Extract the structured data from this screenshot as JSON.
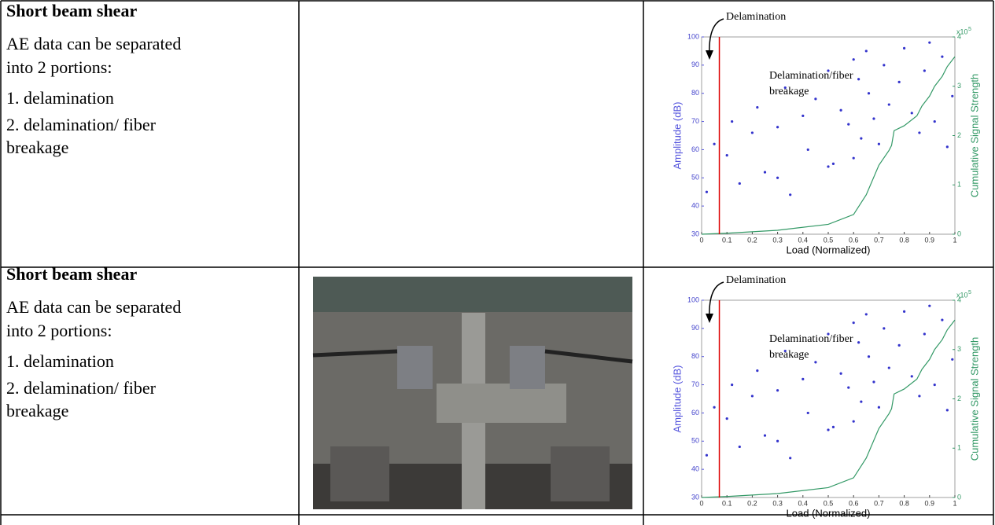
{
  "rows": [
    {
      "title": "Short beam shear",
      "lines": [
        "AE data can be separated",
        "into 2 portions:",
        "1. delamination",
        "2. delamination/ fiber",
        "breakage"
      ],
      "chart": {
        "type": "scatter",
        "x_label": "Load (Normalized)",
        "y_label": "Amplitude (dB)",
        "y2_label": "Cumulative Signal Strength",
        "y2_multiplier": "x10",
        "y2_exponent": "5",
        "annotations": [
          "Delamination",
          "Delamination/fiber",
          "breakage"
        ],
        "xlim": [
          0,
          1
        ],
        "ylim": [
          30,
          100
        ],
        "y2lim": [
          0,
          4
        ],
        "xticks": [
          0,
          0.1,
          0.2,
          0.3,
          0.4,
          0.5,
          0.6,
          0.7,
          0.8,
          0.9,
          1
        ],
        "yticks": [
          30,
          40,
          50,
          60,
          70,
          80,
          90,
          100
        ],
        "y2ticks": [
          0,
          1,
          2,
          3,
          4
        ],
        "divider_x": 0.07,
        "series": [
          {
            "color": "#3333cc",
            "x": [
              0.02,
              0.05,
              0.1,
              0.12,
              0.15,
              0.2,
              0.22,
              0.25,
              0.3,
              0.33,
              0.35,
              0.4,
              0.42,
              0.45,
              0.5,
              0.52,
              0.55,
              0.58,
              0.6,
              0.62,
              0.63,
              0.65,
              0.66,
              0.68,
              0.7,
              0.72,
              0.74,
              0.78,
              0.8,
              0.83,
              0.86,
              0.88,
              0.9,
              0.92,
              0.95,
              0.97,
              0.99,
              0.3,
              0.5,
              0.6
            ],
            "values": [
              45,
              62,
              58,
              70,
              48,
              66,
              75,
              52,
              68,
              82,
              44,
              72,
              60,
              78,
              88,
              55,
              74,
              69,
              92,
              85,
              64,
              95,
              80,
              71,
              62,
              90,
              76,
              84,
              96,
              73,
              66,
              88,
              98,
              70,
              93,
              61,
              79,
              50,
              54,
              57
            ]
          },
          {
            "color": "#339966",
            "axis": "y2",
            "x": [
              0,
              0.1,
              0.3,
              0.5,
              0.6,
              0.65,
              0.7,
              0.74,
              0.75,
              0.76,
              0.8,
              0.85,
              0.87,
              0.9,
              0.92,
              0.95,
              0.97,
              1
            ],
            "values": [
              0,
              0.02,
              0.08,
              0.2,
              0.4,
              0.8,
              1.4,
              1.7,
              1.8,
              2.1,
              2.2,
              2.4,
              2.6,
              2.8,
              3.0,
              3.2,
              3.4,
              3.6
            ]
          }
        ]
      }
    },
    {
      "title": "Short beam shear",
      "lines": [
        "AE data can be separated",
        "into 2 portions:",
        "1. delamination",
        "2. delamination/ fiber",
        "breakage"
      ],
      "chart": {
        "type": "scatter",
        "x_label": "Load (Normalized)",
        "y_label": "Amplitude (dB)",
        "y2_label": "Cumulative Signal Strength",
        "y2_multiplier": "x10",
        "y2_exponent": "5",
        "annotations": [
          "Delamination",
          "Delamination/fiber",
          "breakage"
        ],
        "xlim": [
          0,
          1
        ],
        "ylim": [
          30,
          100
        ],
        "y2lim": [
          0,
          4
        ],
        "xticks": [
          0,
          0.1,
          0.2,
          0.3,
          0.4,
          0.5,
          0.6,
          0.7,
          0.8,
          0.9,
          1
        ],
        "yticks": [
          30,
          40,
          50,
          60,
          70,
          80,
          90,
          100
        ],
        "y2ticks": [
          0,
          1,
          2,
          3,
          4
        ],
        "divider_x": 0.07,
        "series": [
          {
            "color": "#3333cc",
            "x": [
              0.02,
              0.05,
              0.1,
              0.12,
              0.15,
              0.2,
              0.22,
              0.25,
              0.3,
              0.33,
              0.35,
              0.4,
              0.42,
              0.45,
              0.5,
              0.52,
              0.55,
              0.58,
              0.6,
              0.62,
              0.63,
              0.65,
              0.66,
              0.68,
              0.7,
              0.72,
              0.74,
              0.78,
              0.8,
              0.83,
              0.86,
              0.88,
              0.9,
              0.92,
              0.95,
              0.97,
              0.99,
              0.3,
              0.5,
              0.6
            ],
            "values": [
              45,
              62,
              58,
              70,
              48,
              66,
              75,
              52,
              68,
              82,
              44,
              72,
              60,
              78,
              88,
              55,
              74,
              69,
              92,
              85,
              64,
              95,
              80,
              71,
              62,
              90,
              76,
              84,
              96,
              73,
              66,
              88,
              98,
              70,
              93,
              61,
              79,
              50,
              54,
              57
            ]
          },
          {
            "color": "#339966",
            "axis": "y2",
            "x": [
              0,
              0.1,
              0.3,
              0.5,
              0.6,
              0.65,
              0.7,
              0.74,
              0.75,
              0.76,
              0.8,
              0.85,
              0.87,
              0.9,
              0.92,
              0.95,
              0.97,
              1
            ],
            "values": [
              0,
              0.02,
              0.08,
              0.2,
              0.4,
              0.8,
              1.4,
              1.7,
              1.8,
              2.1,
              2.2,
              2.4,
              2.6,
              2.8,
              3.0,
              3.2,
              3.4,
              3.6
            ]
          }
        ]
      }
    }
  ]
}
